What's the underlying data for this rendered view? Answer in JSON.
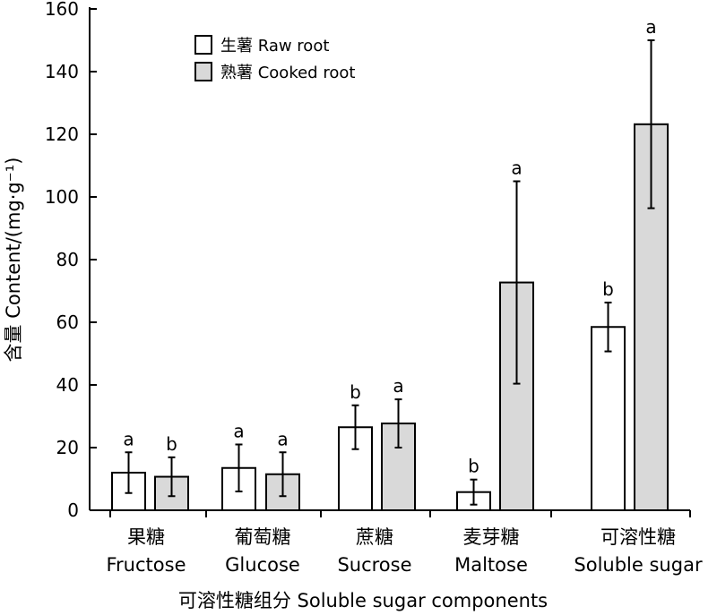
{
  "chart_data": {
    "type": "bar",
    "xlabel": "可溶性糖组分 Soluble sugar components",
    "ylabel": "含量 Content/(mg·g⁻¹)",
    "ylim": [
      0,
      160
    ],
    "yticks": [
      0,
      20,
      40,
      60,
      80,
      100,
      120,
      140,
      160
    ],
    "grid": false,
    "legend_position": "top-left",
    "categories": [
      {
        "zh": "果糖",
        "en": "Fructose"
      },
      {
        "zh": "葡萄糖",
        "en": "Glucose"
      },
      {
        "zh": "蔗糖",
        "en": "Sucrose"
      },
      {
        "zh": "麦芽糖",
        "en": "Maltose"
      },
      {
        "zh": "可溶性糖",
        "en": "Soluble sugar"
      }
    ],
    "series": [
      {
        "name": "生薯 Raw root",
        "color": "#ffffff",
        "values": [
          12,
          13.5,
          26.5,
          5.8,
          58.5
        ],
        "errors": [
          6.5,
          7.5,
          7.0,
          4.0,
          7.8
        ],
        "significance": [
          "a",
          "a",
          "b",
          "b",
          "b"
        ]
      },
      {
        "name": "熟薯 Cooked root",
        "color": "#d9d9d9",
        "values": [
          10.7,
          11.5,
          27.7,
          72.7,
          123.2
        ],
        "errors": [
          6.2,
          7.0,
          7.7,
          32.3,
          26.8
        ],
        "significance": [
          "b",
          "a",
          "a",
          "a",
          "a"
        ]
      }
    ]
  }
}
